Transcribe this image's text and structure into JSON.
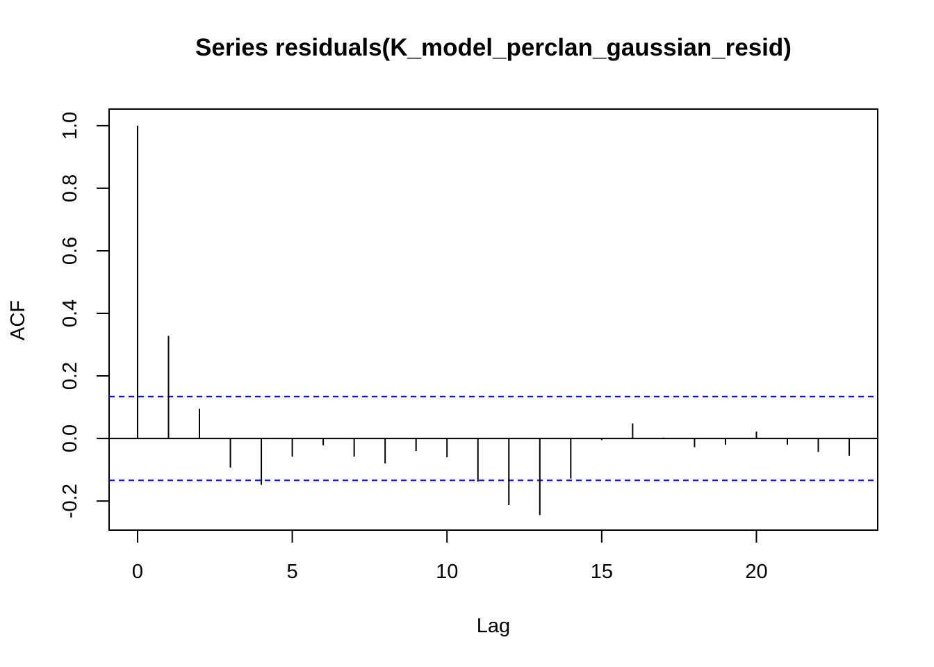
{
  "chart_data": {
    "type": "bar",
    "title": "Series  residuals(K_model_perclan_gaussian_resid)",
    "xlabel": "Lag",
    "ylabel": "ACF",
    "xlim": [
      -0.92,
      23.92
    ],
    "ylim": [
      -0.293,
      1.053
    ],
    "x_ticks": [
      0,
      5,
      10,
      15,
      20
    ],
    "y_ticks": [
      -0.2,
      0.0,
      0.2,
      0.4,
      0.6,
      0.8,
      1.0
    ],
    "x_tick_labels": [
      "0",
      "5",
      "10",
      "15",
      "20"
    ],
    "y_tick_labels": [
      "-0.2",
      "0.0",
      "0.2",
      "0.4",
      "0.6",
      "0.8",
      "1.0"
    ],
    "lags": [
      0,
      1,
      2,
      3,
      4,
      5,
      6,
      7,
      8,
      9,
      10,
      11,
      12,
      13,
      14,
      15,
      16,
      17,
      18,
      19,
      20,
      21,
      22,
      23
    ],
    "acf": [
      1.0,
      0.328,
      0.095,
      -0.093,
      -0.148,
      -0.058,
      -0.022,
      -0.058,
      -0.08,
      -0.04,
      -0.06,
      -0.138,
      -0.213,
      -0.245,
      -0.128,
      -0.005,
      0.048,
      0.003,
      -0.028,
      -0.02,
      0.022,
      -0.02,
      -0.043,
      -0.055
    ],
    "ci_upper": 0.134,
    "ci_lower": -0.134,
    "ci_color": "#0000ff",
    "line_color": "#000000",
    "grid": false
  }
}
